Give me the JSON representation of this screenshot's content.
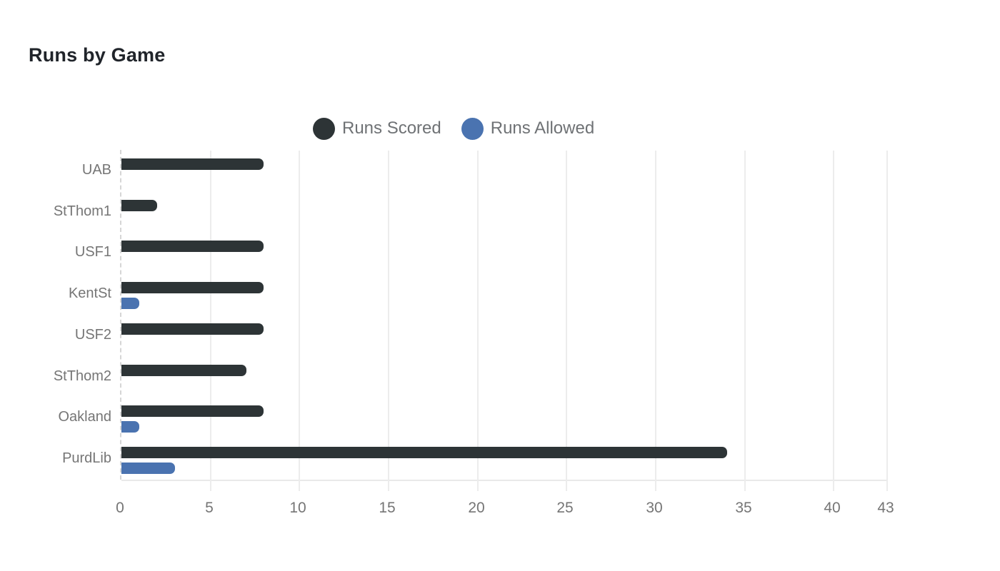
{
  "chart_data": {
    "type": "bar",
    "orientation": "horizontal",
    "title": "Runs by Game",
    "categories": [
      "UAB",
      "StThom1",
      "USF1",
      "KentSt",
      "USF2",
      "StThom2",
      "Oakland",
      "PurdLib"
    ],
    "series": [
      {
        "name": "Runs Scored",
        "color": "#2d3436",
        "values": [
          8,
          2,
          8,
          8,
          8,
          7,
          8,
          34
        ]
      },
      {
        "name": "Runs Allowed",
        "color": "#4a73b0",
        "values": [
          0,
          0,
          0,
          1,
          0,
          0,
          1,
          3
        ]
      }
    ],
    "x_ticks": [
      0,
      5,
      10,
      15,
      20,
      25,
      30,
      35,
      40,
      43
    ],
    "xlim": [
      0,
      43
    ],
    "xlabel": "",
    "ylabel": "",
    "grid": true,
    "legend_position": "top-center",
    "style": {
      "background": "#ffffff",
      "title_color": "#20242a",
      "axis_label_color": "#757575",
      "legend_text_color": "#6f7275",
      "gridline_color": "#ececec",
      "axis_line_color": "#d6d6d6"
    }
  }
}
